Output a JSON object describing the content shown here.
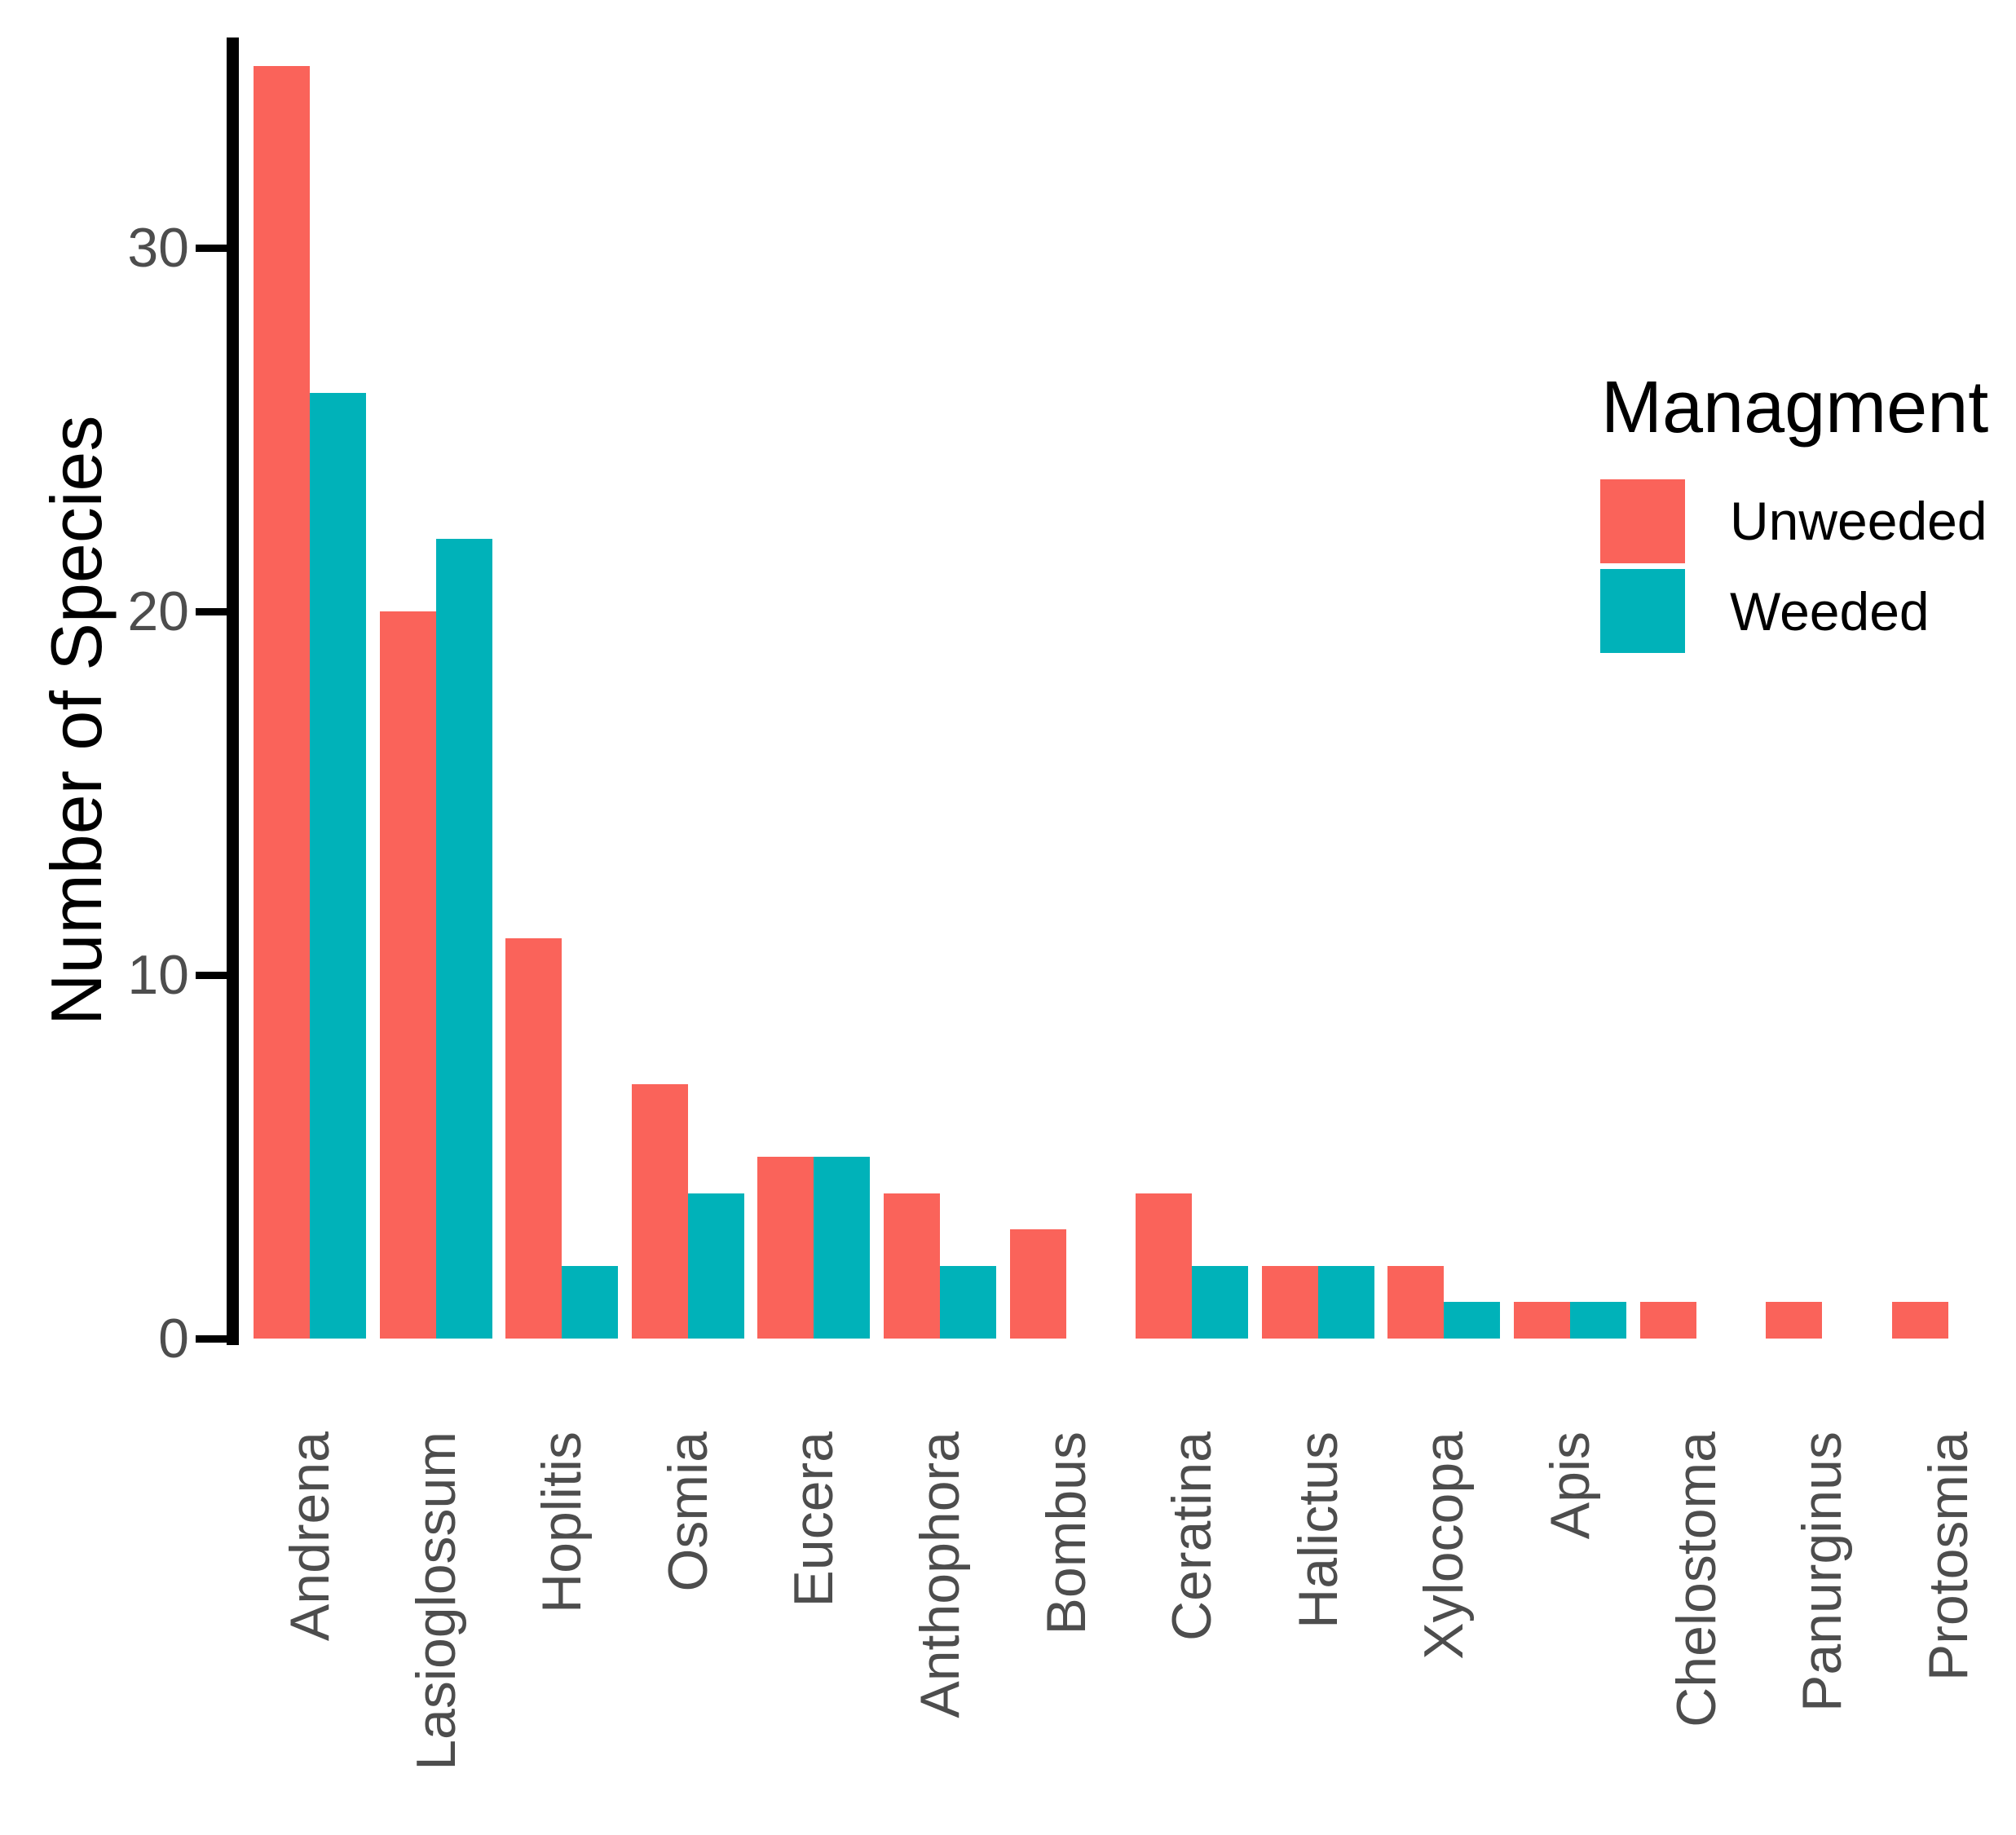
{
  "chart_data": {
    "type": "bar",
    "title": "",
    "xlabel": "",
    "ylabel": "Number of Species",
    "categories": [
      "Andrena",
      "Lasioglossum",
      "Hoplitis",
      "Osmia",
      "Eucera",
      "Anthophora",
      "Bombus",
      "Ceratina",
      "Halictus",
      "Xylocopa",
      "Apis",
      "Chelostoma",
      "Panurginus",
      "Protosmia"
    ],
    "series": [
      {
        "name": "Unweeded",
        "color": "#FA635A",
        "values": [
          35,
          20,
          11,
          7,
          5,
          4,
          3,
          4,
          2,
          2,
          1,
          1,
          1,
          1
        ]
      },
      {
        "name": "Weeded",
        "color": "#00B2B9",
        "values": [
          26,
          22,
          2,
          4,
          5,
          2,
          0,
          2,
          2,
          1,
          1,
          0,
          0,
          0
        ]
      }
    ],
    "ylim": [
      0,
      35.5
    ],
    "yticks": [
      0,
      10,
      20,
      30
    ],
    "grid": false,
    "legend_position": "right",
    "x_label_rotation": -90
  },
  "legend": {
    "title": "Managment",
    "entries": [
      {
        "label": "Unweeded",
        "series": "Unweeded"
      },
      {
        "label": "Weeded",
        "series": "Weeded"
      }
    ]
  },
  "colors": {
    "unweeded": "#FA635A",
    "weeded": "#00B2B9",
    "axis_text": "#4D4D4D",
    "axis_line": "#000000",
    "background": "#ffffff"
  }
}
